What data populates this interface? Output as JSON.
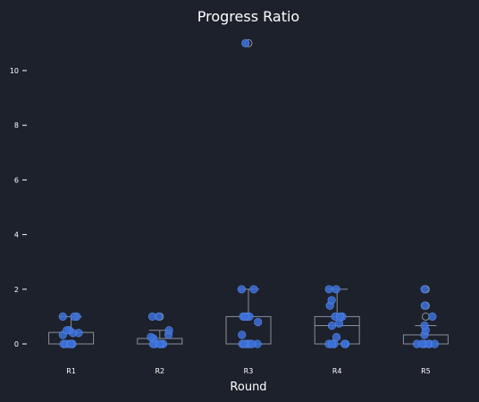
{
  "chart_data": {
    "type": "box",
    "title": "Progress Ratio",
    "xlabel": "Round",
    "ylabel": "",
    "ylim": [
      -0.7,
      11.6
    ],
    "yticks": [
      0,
      2,
      4,
      6,
      8,
      10
    ],
    "categories": [
      "R1",
      "R2",
      "R3",
      "R4",
      "R5"
    ],
    "boxes": [
      {
        "category": "R1",
        "q1": 0.0,
        "median": 0.0,
        "q3": 0.42,
        "whisker_low": 0.0,
        "whisker_high": 1.0,
        "fliers": []
      },
      {
        "category": "R2",
        "q1": 0.0,
        "median": 0.0,
        "q3": 0.2,
        "whisker_low": 0.0,
        "whisker_high": 0.5,
        "fliers": [
          1.0
        ]
      },
      {
        "category": "R3",
        "q1": 0.0,
        "median": 0.0,
        "q3": 1.0,
        "whisker_low": 0.0,
        "whisker_high": 2.0,
        "fliers": [
          11.0
        ]
      },
      {
        "category": "R4",
        "q1": 0.0,
        "median": 0.67,
        "q3": 1.0,
        "whisker_low": 0.0,
        "whisker_high": 2.0,
        "fliers": []
      },
      {
        "category": "R5",
        "q1": 0.0,
        "median": 0.0,
        "q3": 0.33,
        "whisker_low": 0.0,
        "whisker_high": 0.67,
        "fliers": [
          1.0,
          1.4,
          2.0
        ]
      }
    ],
    "points": [
      {
        "category": "R1",
        "values": [
          0,
          0,
          0,
          0,
          0,
          0,
          0.33,
          0.4,
          0.4,
          0.5,
          0.5,
          1,
          1,
          1
        ]
      },
      {
        "category": "R2",
        "values": [
          0,
          0,
          0,
          0,
          0,
          0,
          0.2,
          0.25,
          0.33,
          0.5,
          1,
          1
        ]
      },
      {
        "category": "R3",
        "values": [
          0,
          0,
          0,
          0,
          0,
          0,
          0.33,
          0.8,
          1,
          1,
          1,
          1,
          2,
          2,
          11
        ]
      },
      {
        "category": "R4",
        "values": [
          0,
          0,
          0,
          0,
          0,
          0.25,
          0.67,
          0.75,
          1,
          1,
          1,
          1.4,
          1.6,
          2,
          2
        ]
      },
      {
        "category": "R5",
        "values": [
          0,
          0,
          0,
          0,
          0,
          0,
          0.33,
          0.5,
          0.67,
          1,
          1.4,
          2
        ]
      }
    ],
    "colors": {
      "background": "#1c212c",
      "point": "#3a6fd8",
      "point_edge": "#5b8ae8",
      "box_edge": "#8a8f99",
      "text": "#ffffff"
    },
    "grid": false,
    "legend": "none"
  }
}
